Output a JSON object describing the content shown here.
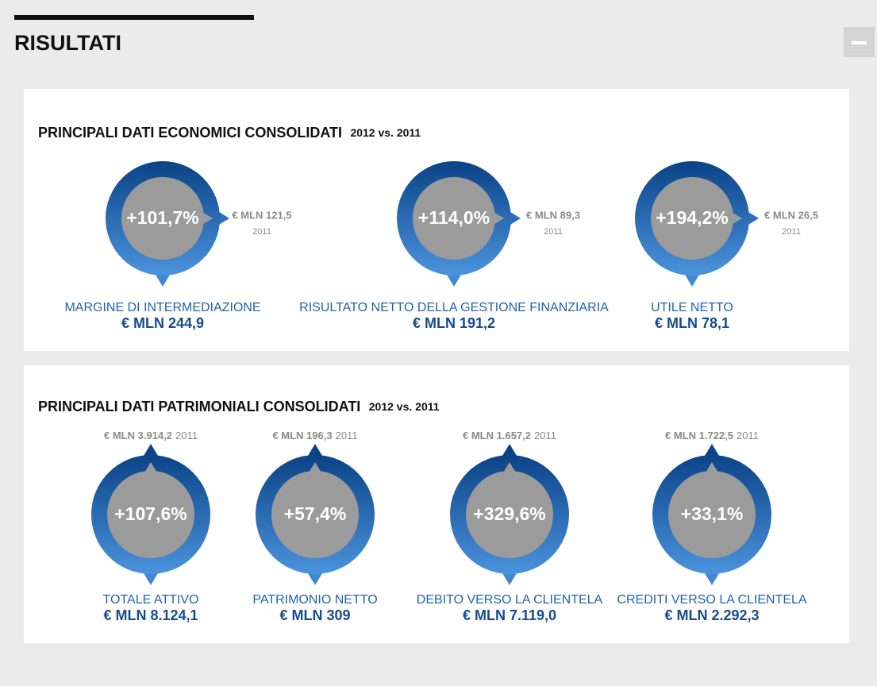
{
  "header": {
    "title": "RISULTATI"
  },
  "sections": [
    {
      "title": "PRINCIPALI DATI ECONOMICI CONSOLIDATI",
      "subtitle": "2012 vs. 2011",
      "items": [
        {
          "change": "+101,7%",
          "previous": "€ MLN 121,5",
          "previous_year": "2011",
          "label": "MARGINE DI INTERMEDIAZIONE",
          "value": "€ MLN 244,9"
        },
        {
          "change": "+114,0%",
          "previous": "€ MLN 89,3",
          "previous_year": "2011",
          "label": "RISULTATO NETTO DELLA GESTIONE FINANZIARIA",
          "value": "€ MLN 191,2"
        },
        {
          "change": "+194,2%",
          "previous": "€ MLN 26,5",
          "previous_year": "2011",
          "label": "UTILE NETTO",
          "value": "€ MLN 78,1"
        }
      ]
    },
    {
      "title": "PRINCIPALI DATI PATRIMONIALI CONSOLIDATI",
      "subtitle": "2012 vs. 2011",
      "items": [
        {
          "change": "+107,6%",
          "previous": "€ MLN 3.914,2",
          "previous_year": "2011",
          "label": "TOTALE ATTIVO",
          "value": "€ MLN 8.124,1"
        },
        {
          "change": "+57,4%",
          "previous": "€ MLN 196,3",
          "previous_year": "2011",
          "label": "PATRIMONIO NETTO",
          "value": "€ MLN 309"
        },
        {
          "change": "+329,6%",
          "previous": "€ MLN 1.657,2",
          "previous_year": "2011",
          "label": "DEBITO VERSO LA CLIENTELA",
          "value": "€ MLN 7.119,0"
        },
        {
          "change": "+33,1%",
          "previous": "€ MLN 1.722,5",
          "previous_year": "2011",
          "label": "CREDITI VERSO LA CLIENTELA",
          "value": "€ MLN 2.292,3"
        }
      ]
    }
  ]
}
